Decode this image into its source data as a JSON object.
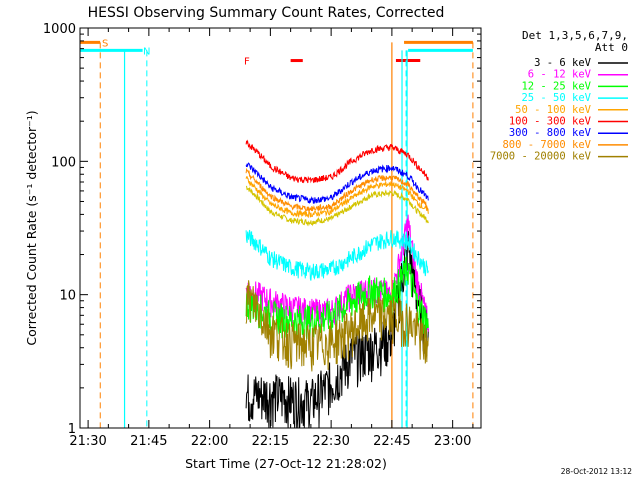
{
  "chart_data": {
    "type": "line",
    "title": "HESSI Observing Summary Count Rates, Corrected",
    "xlabel": "Start Time (27-Oct-12 21:28:02)",
    "ylabel": "Corrected Count Rate (s⁻¹ detector⁻¹)",
    "y_scale": "log",
    "ylim": [
      1,
      1000
    ],
    "xlim_minutes": [
      -2,
      97
    ],
    "x_ticks": [
      "21:30",
      "21:45",
      "22:00",
      "22:15",
      "22:30",
      "22:45",
      "23:00"
    ],
    "y_ticks": [
      "1",
      "10",
      "100",
      "1000"
    ],
    "timestamp": "28-Oct-2012 13:12",
    "legend": {
      "header": "Det 1,3,5,6,7,9,",
      "header2": "Att 0",
      "placement": "right"
    },
    "series": [
      {
        "name": "3 - 6 keV",
        "color": "#000000",
        "x": [
          39,
          42,
          45,
          50,
          55,
          60,
          65,
          70,
          75,
          79,
          81,
          84
        ],
        "y": [
          1.8,
          1.8,
          1.8,
          1.7,
          1.6,
          2.2,
          3.5,
          4.0,
          5.0,
          25,
          10,
          5
        ]
      },
      {
        "name": "6 - 12 keV",
        "color": "#ff00ff",
        "x": [
          39,
          42,
          45,
          50,
          55,
          60,
          65,
          70,
          75,
          79,
          81,
          84
        ],
        "y": [
          11,
          10,
          9,
          8,
          7.5,
          7.5,
          10,
          11,
          10,
          35,
          14,
          6
        ]
      },
      {
        "name": "12 - 25 keV",
        "color": "#00ff00",
        "x": [
          39,
          42,
          45,
          50,
          55,
          60,
          65,
          70,
          75,
          79,
          81,
          84
        ],
        "y": [
          9,
          8,
          7,
          6.5,
          6.5,
          7,
          9,
          11,
          10,
          16,
          9,
          6
        ]
      },
      {
        "name": "25 - 50 keV",
        "color": "#00ffff",
        "x": [
          39,
          42,
          45,
          50,
          55,
          60,
          65,
          70,
          75,
          79,
          81,
          84
        ],
        "y": [
          28,
          24,
          19,
          16,
          15,
          15.5,
          19,
          24,
          27,
          25,
          20,
          15
        ]
      },
      {
        "name": "50 - 100 keV",
        "color": "#ffa500",
        "x": [
          39,
          42,
          45,
          50,
          55,
          60,
          65,
          70,
          75,
          79,
          81,
          84
        ],
        "y": [
          75,
          60,
          48,
          41,
          40,
          42,
          53,
          65,
          68,
          60,
          50,
          42
        ]
      },
      {
        "name": "100 - 300 keV",
        "color": "#ff0000",
        "x": [
          39,
          42,
          45,
          50,
          55,
          60,
          65,
          70,
          75,
          79,
          81,
          84
        ],
        "y": [
          140,
          115,
          92,
          75,
          72,
          76,
          100,
          122,
          128,
          112,
          95,
          75
        ]
      },
      {
        "name": "300 - 800 keV",
        "color": "#0000ff",
        "x": [
          39,
          42,
          45,
          50,
          55,
          60,
          65,
          70,
          75,
          79,
          81,
          84
        ],
        "y": [
          97,
          80,
          64,
          54,
          51,
          53,
          70,
          85,
          90,
          78,
          66,
          52
        ]
      },
      {
        "name": "800 - 7000 keV",
        "color": "#ff8c00",
        "x": [
          39,
          42,
          45,
          50,
          55,
          60,
          65,
          70,
          75,
          79,
          81,
          84
        ],
        "y": [
          84,
          68,
          55,
          46,
          44,
          46,
          60,
          73,
          76,
          67,
          56,
          45
        ]
      },
      {
        "name": "7000 - 20000 keV",
        "color": "#a08000",
        "x": [
          39,
          42,
          45,
          50,
          55,
          60,
          65,
          70,
          75,
          79,
          81,
          84
        ],
        "y": [
          10,
          8,
          5.5,
          4.5,
          4.3,
          4.5,
          5.5,
          7,
          7,
          6.5,
          5.5,
          4
        ]
      }
    ],
    "background_series": {
      "color": "#d4c400",
      "x": [
        39,
        42,
        45,
        50,
        55,
        60,
        65,
        70,
        75,
        79,
        81,
        84
      ],
      "y": [
        65,
        53,
        42,
        36,
        35,
        37,
        46,
        56,
        58,
        52,
        43,
        36
      ]
    },
    "flags": {
      "saa": {
        "label": "S",
        "color": "#ff8000",
        "x_minutes": [
          -2,
          0
        ],
        "y": 780
      },
      "night": {
        "label": "N",
        "color": "#00ffff",
        "x_minutes": [
          -2,
          10
        ],
        "y": 680
      },
      "flare": {
        "label": "F",
        "color": "#ff0000",
        "segments": [
          [
            50,
            53
          ],
          [
            76,
            82
          ]
        ],
        "y": 570
      }
    },
    "night_intervals_minutes": [
      [
        10,
        75
      ],
      [
        79,
        95
      ]
    ],
    "saa_markers_minutes": [
      3,
      95
    ],
    "night_markers_minutes": [
      14.5,
      78.5
    ],
    "solid_markers_minutes": [
      9,
      75,
      77.5
    ],
    "saa_end_segment": {
      "x_minutes": [
        78,
        95
      ],
      "y": 780
    },
    "night_end_segment": {
      "x_minutes": [
        79,
        95
      ],
      "y": 680
    }
  }
}
